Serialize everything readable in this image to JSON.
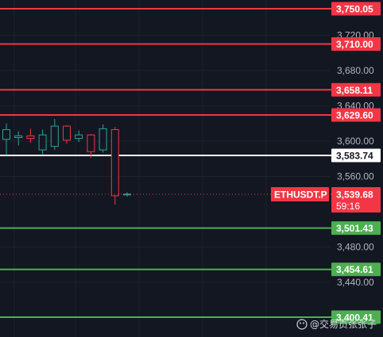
{
  "chart_data": {
    "type": "candlestick",
    "symbol": "ETHUSDT.P",
    "last_price": "3,539.68",
    "countdown": "59:16",
    "ylim": [
      3385,
      3770
    ],
    "y_ticks": [
      "3,720.00",
      "3,680.00",
      "3,640.00",
      "3,600.00",
      "3,560.00",
      "3,480.00",
      "3,440.00"
    ],
    "y_tick_values": [
      3720,
      3680,
      3640,
      3600,
      3560,
      3480,
      3440
    ],
    "levels": [
      {
        "value": 3750.05,
        "label": "3,750.05",
        "color": "#f23645"
      },
      {
        "value": 3710.0,
        "label": "3,710.00",
        "color": "#f23645"
      },
      {
        "value": 3658.11,
        "label": "3,658.11",
        "color": "#f23645"
      },
      {
        "value": 3629.6,
        "label": "3,629.60",
        "color": "#f23645"
      },
      {
        "value": 3583.74,
        "label": "3,583.74",
        "color": "#ffffff"
      },
      {
        "value": 3501.43,
        "label": "3,501.43",
        "color": "#4caf50"
      },
      {
        "value": 3454.61,
        "label": "3,454.61",
        "color": "#4caf50"
      },
      {
        "value": 3400.41,
        "label": "3,400.41",
        "color": "#4caf50"
      }
    ],
    "candles": [
      {
        "o": 3602,
        "h": 3620,
        "l": 3584,
        "c": 3613
      },
      {
        "o": 3604,
        "h": 3611,
        "l": 3595,
        "c": 3606
      },
      {
        "o": 3606,
        "h": 3614,
        "l": 3598,
        "c": 3603
      },
      {
        "o": 3590,
        "h": 3613,
        "l": 3585,
        "c": 3607
      },
      {
        "o": 3594,
        "h": 3625,
        "l": 3590,
        "c": 3617
      },
      {
        "o": 3617,
        "h": 3618,
        "l": 3597,
        "c": 3601
      },
      {
        "o": 3603,
        "h": 3612,
        "l": 3599,
        "c": 3607
      },
      {
        "o": 3607,
        "h": 3608,
        "l": 3581,
        "c": 3588
      },
      {
        "o": 3590,
        "h": 3619,
        "l": 3587,
        "c": 3614
      },
      {
        "o": 3613,
        "h": 3616,
        "l": 3528,
        "c": 3538
      },
      {
        "o": 3539,
        "h": 3542,
        "l": 3537,
        "c": 3540
      }
    ],
    "colors": {
      "up": "#26a69a",
      "down": "#f23645",
      "background": "#131722",
      "grid": "#1e222d",
      "text": "#b2b5be",
      "current": "#f23645"
    }
  },
  "watermark": "@交易员张张子"
}
